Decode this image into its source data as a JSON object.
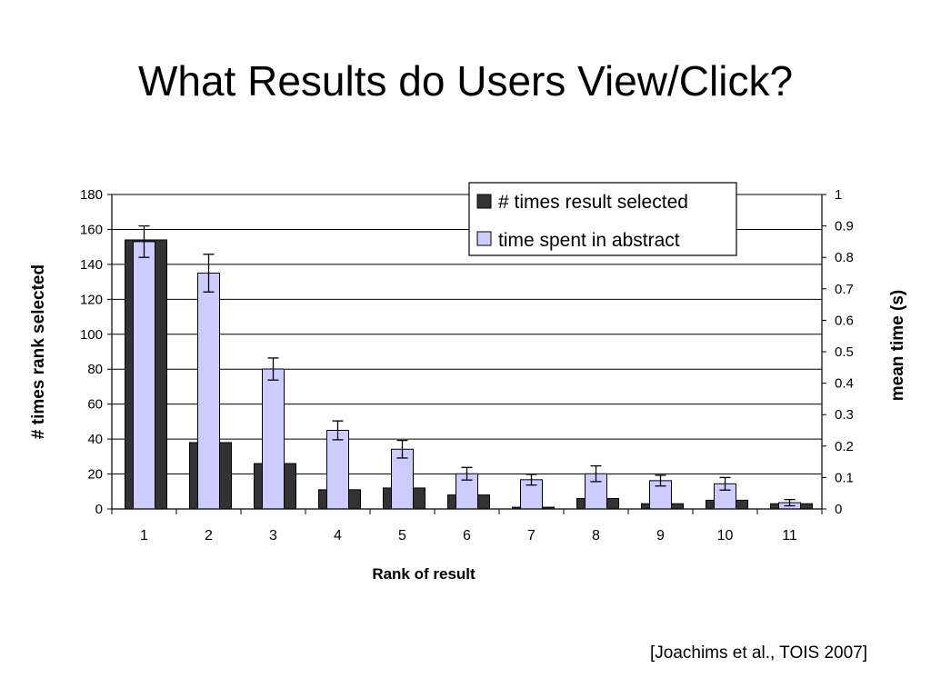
{
  "slide": {
    "title": "What Results do Users View/Click?",
    "citation": "[Joachims et al., TOIS 2007]"
  },
  "colors": {
    "selected_fill": "#333333",
    "abstract_fill": "#ccccff",
    "gridline": "#000000"
  },
  "chart_data": {
    "type": "bar",
    "xlabel": "Rank of result",
    "ylabel_left": "# times rank selected",
    "ylabel_right": "mean time (s)",
    "categories": [
      "1",
      "2",
      "3",
      "4",
      "5",
      "6",
      "7",
      "8",
      "9",
      "10",
      "11"
    ],
    "ylim_left": [
      0,
      180
    ],
    "yticks_left": [
      0,
      20,
      40,
      60,
      80,
      100,
      120,
      140,
      160,
      180
    ],
    "ylim_right": [
      0,
      1
    ],
    "yticks_right": [
      "0",
      "0.1",
      "0.2",
      "0.3",
      "0.4",
      "0.5",
      "0.6",
      "0.7",
      "0.8",
      "0.9",
      "1"
    ],
    "grid": true,
    "legend_position": "top-right",
    "series": [
      {
        "name": "# times result selected",
        "axis": "left",
        "color": "#333333",
        "values": [
          154,
          38,
          26,
          11,
          12,
          8,
          1,
          6,
          3,
          5,
          3
        ]
      },
      {
        "name": "time spent in abstract",
        "axis": "right",
        "color": "#ccccff",
        "values": [
          0.85,
          0.75,
          0.445,
          0.25,
          0.19,
          0.112,
          0.093,
          0.112,
          0.09,
          0.08,
          0.02
        ],
        "error": [
          0.05,
          0.06,
          0.035,
          0.03,
          0.028,
          0.02,
          0.017,
          0.025,
          0.017,
          0.02,
          0.01
        ]
      }
    ]
  }
}
